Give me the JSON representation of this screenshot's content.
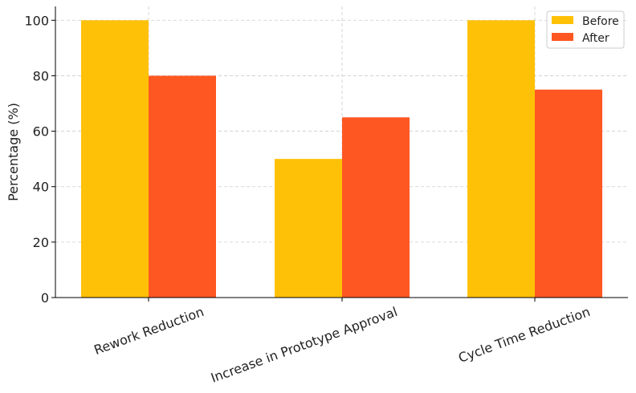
{
  "chart_data": {
    "type": "bar",
    "title": "",
    "xlabel": "",
    "ylabel": "Percentage (%)",
    "categories": [
      "Rework Reduction",
      "Increase in Prototype Approval",
      "Cycle Time Reduction"
    ],
    "series": [
      {
        "name": "Before",
        "color": "#FFC107",
        "values": [
          100,
          50,
          100
        ]
      },
      {
        "name": "After",
        "color": "#FF5722",
        "values": [
          80,
          65,
          75
        ]
      }
    ],
    "ylim": [
      0,
      105
    ],
    "yticks": [
      0,
      20,
      40,
      60,
      80,
      100
    ],
    "grid": true,
    "legend": "top-right"
  }
}
